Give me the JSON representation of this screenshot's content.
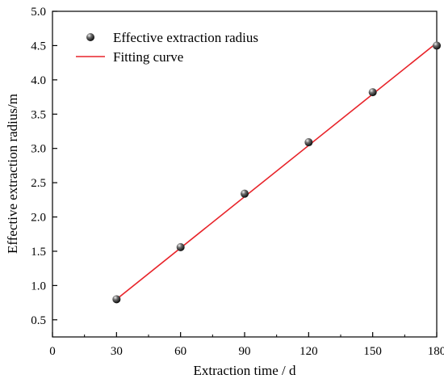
{
  "chart_data": {
    "type": "scatter",
    "title": "",
    "xlabel": "Extraction time / d",
    "ylabel": "Effective extraction radius/m",
    "xlim": [
      0,
      180
    ],
    "ylim": [
      0.25,
      5.0
    ],
    "xticks": [
      0,
      30,
      60,
      90,
      120,
      150,
      180
    ],
    "xtick_labels": [
      "0",
      "30",
      "60",
      "90",
      "120",
      "150",
      "180"
    ],
    "yticks": [
      0.5,
      1.0,
      1.5,
      2.0,
      2.5,
      3.0,
      3.5,
      4.0,
      4.5,
      5.0
    ],
    "ytick_labels": [
      "0.5",
      "1.0",
      "1.5",
      "2.0",
      "2.5",
      "3.0",
      "3.5",
      "4.0",
      "4.5",
      "5.0"
    ],
    "grid": false,
    "legend_position": "top-left",
    "series": [
      {
        "name": "Effective extraction radius",
        "kind": "scatter",
        "color": "#000000",
        "x": [
          30,
          60,
          90,
          120,
          150,
          180
        ],
        "y": [
          0.8,
          1.56,
          2.34,
          3.09,
          3.82,
          4.5
        ]
      },
      {
        "name": "Fitting curve",
        "kind": "line",
        "color": "#e8242a",
        "x": [
          30,
          180
        ],
        "y": [
          0.8,
          4.54
        ]
      }
    ]
  }
}
